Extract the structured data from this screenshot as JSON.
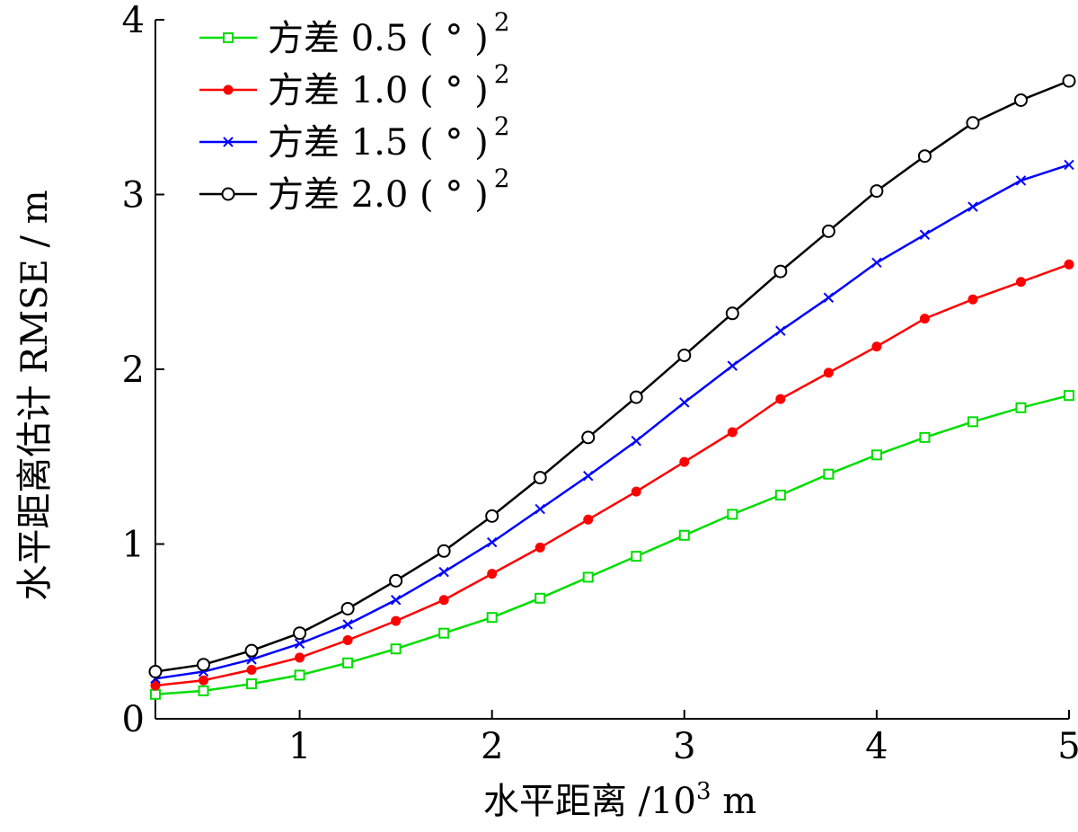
{
  "chart_data": {
    "type": "line",
    "title": "",
    "xlabel": "水平距离 /10",
    "xlabel_sup": "3",
    "xlabel_unit": " m",
    "ylabel": "水平距离估计 RMSE / m",
    "xlim": [
      0.25,
      5
    ],
    "ylim": [
      0,
      4
    ],
    "xticks": [
      1,
      2,
      3,
      4,
      5
    ],
    "yticks": [
      0,
      1,
      2,
      3,
      4
    ],
    "xtick_labels": [
      "1",
      "2",
      "3",
      "4",
      "5"
    ],
    "ytick_labels": [
      "0",
      "1",
      "2",
      "3",
      "4"
    ],
    "grid": false,
    "legend_position": "top-left",
    "x": [
      0.25,
      0.5,
      0.75,
      1.0,
      1.25,
      1.5,
      1.75,
      2.0,
      2.25,
      2.5,
      2.75,
      3.0,
      3.25,
      3.5,
      3.75,
      4.0,
      4.25,
      4.5,
      4.75,
      5.0
    ],
    "series": [
      {
        "name": "方差 0.5 (°)²",
        "legend_label": "方差 0.5 ( ° )",
        "legend_sup": "2",
        "color": "#00dd00",
        "marker": "square",
        "values": [
          0.14,
          0.16,
          0.2,
          0.25,
          0.32,
          0.4,
          0.49,
          0.58,
          0.69,
          0.81,
          0.93,
          1.05,
          1.17,
          1.28,
          1.4,
          1.51,
          1.61,
          1.7,
          1.78,
          1.85
        ]
      },
      {
        "name": "方差 1.0 (°)²",
        "legend_label": "方差 1.0 ( ° )",
        "legend_sup": "2",
        "color": "#ff0000",
        "marker": "dot",
        "values": [
          0.19,
          0.22,
          0.28,
          0.35,
          0.45,
          0.56,
          0.68,
          0.83,
          0.98,
          1.14,
          1.3,
          1.47,
          1.64,
          1.83,
          1.98,
          2.13,
          2.29,
          2.4,
          2.5,
          2.6
        ]
      },
      {
        "name": "方差 1.5 (°)²",
        "legend_label": "方差 1.5 ( ° )",
        "legend_sup": "2",
        "color": "#0000ff",
        "marker": "x",
        "values": [
          0.23,
          0.27,
          0.34,
          0.43,
          0.54,
          0.68,
          0.84,
          1.01,
          1.2,
          1.39,
          1.59,
          1.81,
          2.02,
          2.22,
          2.41,
          2.61,
          2.77,
          2.93,
          3.08,
          3.17
        ]
      },
      {
        "name": "方差 2.0 (°)²",
        "legend_label": "方差 2.0 ( ° )",
        "legend_sup": "2",
        "color": "#000000",
        "marker": "circle",
        "values": [
          0.27,
          0.31,
          0.39,
          0.49,
          0.63,
          0.79,
          0.96,
          1.16,
          1.38,
          1.61,
          1.84,
          2.08,
          2.32,
          2.56,
          2.79,
          3.02,
          3.22,
          3.41,
          3.54,
          3.65
        ]
      }
    ]
  }
}
